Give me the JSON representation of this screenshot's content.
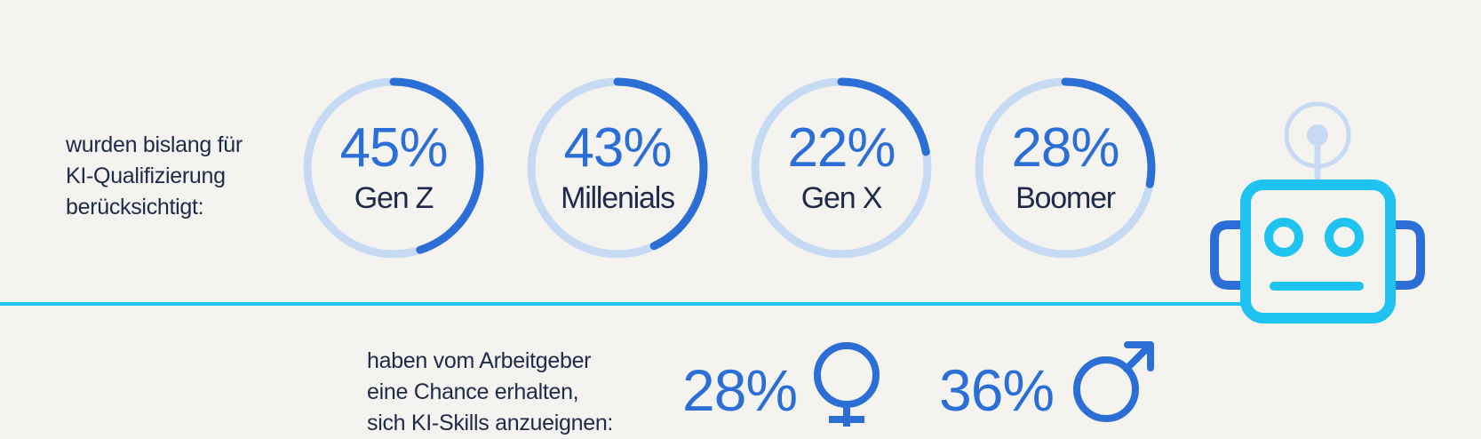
{
  "intro_lines": [
    "wurden bislang für",
    "KI-Qualifizierung",
    "berücksichtigt:"
  ],
  "generations": [
    {
      "percent": "45%",
      "value": 45,
      "label": "Gen Z"
    },
    {
      "percent": "43%",
      "value": 43,
      "label": "Millenials"
    },
    {
      "percent": "22%",
      "value": 22,
      "label": "Gen X"
    },
    {
      "percent": "28%",
      "value": 28,
      "label": "Boomer"
    }
  ],
  "chance_lines": [
    "haben vom Arbeitgeber",
    "eine Chance erhalten,",
    "sich KI-Skills anzueignen:"
  ],
  "gender": [
    {
      "percent": "28%",
      "icon": "female-symbol-icon"
    },
    {
      "percent": "36%",
      "icon": "male-symbol-icon"
    }
  ],
  "colors": {
    "background": "#f4f3ef",
    "accent_blue": "#2b6fd6",
    "ring_track": "#c6daf4",
    "cyan": "#1fc3f0",
    "text_dark": "#1f2a4a"
  }
}
